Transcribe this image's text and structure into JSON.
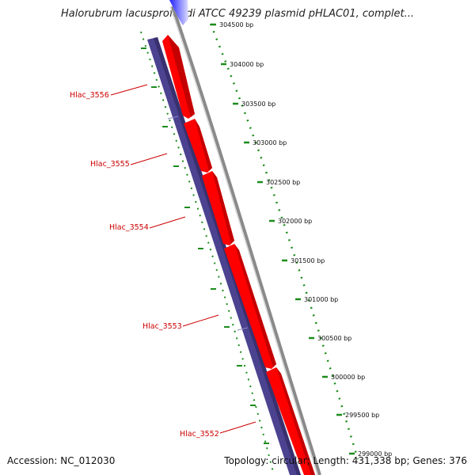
{
  "map": {
    "title": "Halorubrum lacusprofundi ATCC 49239 plasmid pHLAC01, complet...",
    "accession": "Accession: NC_012030",
    "topology": "Topology: circular; Length: 431,338 bp; Genes: 376"
  },
  "scale": {
    "ticks": [
      "304500 bp",
      "304000 bp",
      "303500 bp",
      "303000 bp",
      "302500 bp",
      "302000 bp",
      "301500 bp",
      "301000 bp",
      "300500 bp",
      "300000 bp",
      "299500 bp",
      "299000 bp"
    ]
  },
  "genes": [
    "Hlac_3556",
    "Hlac_3555",
    "Hlac_3554",
    "Hlac_3553",
    "Hlac_3552"
  ],
  "colors": {
    "forward_cds": "#ff0000",
    "reverse_cds": "#4a418f",
    "backbone": "#7a7a7a",
    "scale": "#1c8c1c",
    "label": "#cc0000"
  }
}
